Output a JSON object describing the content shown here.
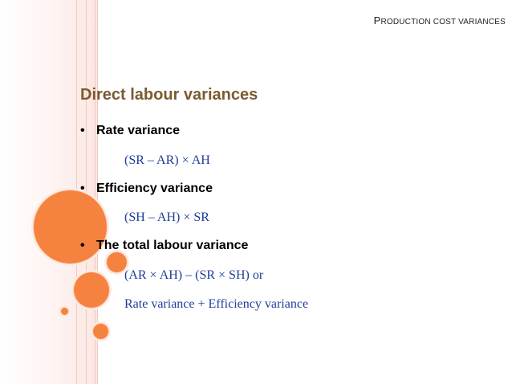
{
  "header": {
    "title_first": "P",
    "title_rest": "RODUCTION COST VARIANCES"
  },
  "slide": {
    "title": "Direct labour variances",
    "items": [
      {
        "bullet": "•",
        "label": "Rate variance",
        "formulas": [
          "(SR – AR) × AH"
        ]
      },
      {
        "bullet": "•",
        "label": "Efficiency variance",
        "formulas": [
          "(SH – AH) × SR"
        ]
      },
      {
        "bullet": "•",
        "label": "The total labour variance",
        "formulas": [
          "(AR × AH) – (SR × SH) or",
          "Rate variance + Efficiency variance"
        ]
      }
    ]
  },
  "colors": {
    "accent_circle": "#f6823f",
    "title": "#7b5a30",
    "formula": "#1f3c9a"
  }
}
